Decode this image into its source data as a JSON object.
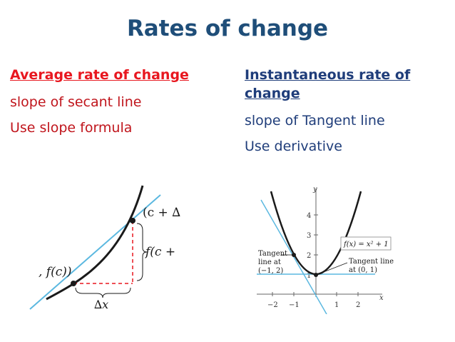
{
  "title": "Rates of change",
  "left": {
    "heading": "Average rate of change",
    "line1": "slope of secant line",
    "line2": "Use slope formula",
    "figure": {
      "label_top": "(c + ∆",
      "label_side": "f(c +",
      "label_point": ", f(c))",
      "label_dx": "∆x"
    }
  },
  "right": {
    "heading": "Instantaneous rate of change",
    "line1": "slope of Tangent line",
    "line2": "Use derivative",
    "figure": {
      "axis_y": "y",
      "axis_x": "x",
      "ytick_4": "4",
      "ytick_3": "3",
      "ytick_2": "2",
      "ytick_1": "1",
      "xtick_m2": "−2",
      "xtick_m1": "−1",
      "xtick_1": "1",
      "xtick_2": "2",
      "func_label": "f(x) = x² + 1",
      "tan_left_1": "Tangent",
      "tan_left_2": "line at",
      "tan_left_3": "(−1, 2)",
      "tan_right_1": "Tangent line",
      "tan_right_2": "at (0, 1)"
    }
  },
  "colors": {
    "title": "#1f4e79",
    "red": "#e8171f",
    "blue": "#1f3d7a",
    "tangent": "#5bb8e0",
    "secant_dash": "#e8171f"
  }
}
